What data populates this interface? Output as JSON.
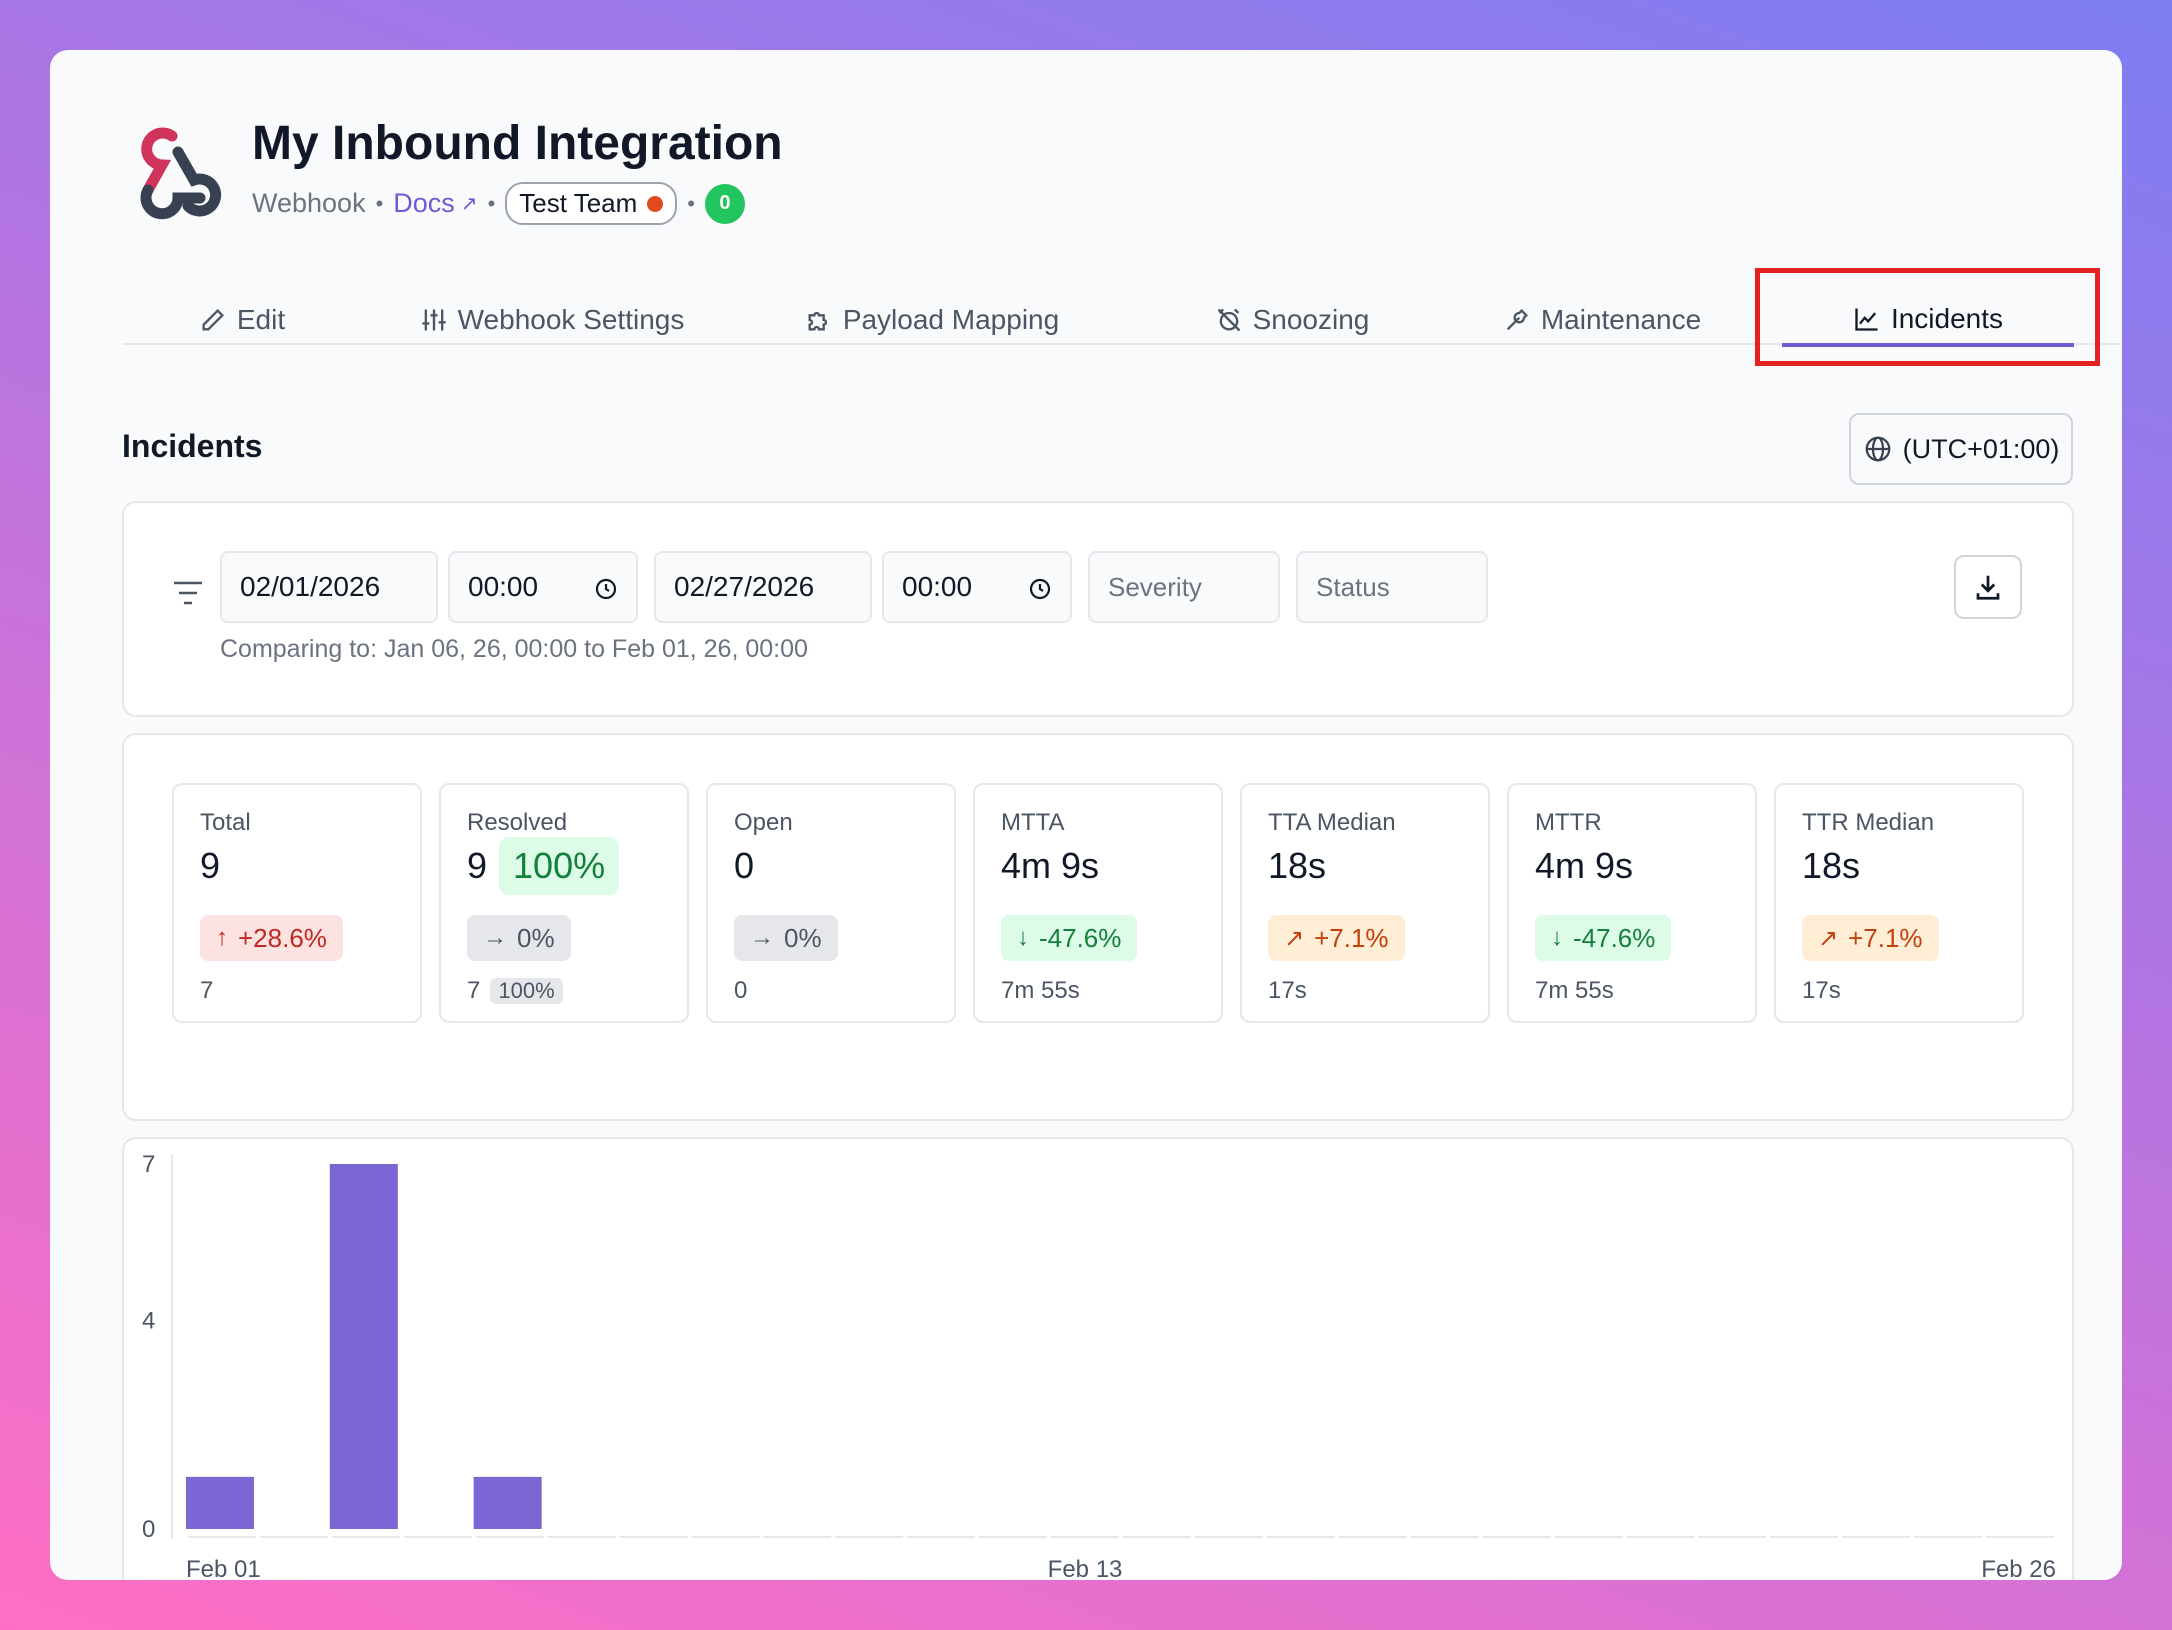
{
  "header": {
    "title": "My Inbound Integration",
    "type": "Webhook",
    "docs_label": "Docs",
    "team_label": "Test Team",
    "count": "0"
  },
  "tabs": [
    {
      "label": "Edit",
      "icon": "pencil-icon"
    },
    {
      "label": "Webhook Settings",
      "icon": "sliders-icon"
    },
    {
      "label": "Payload Mapping",
      "icon": "puzzle-icon"
    },
    {
      "label": "Snoozing",
      "icon": "alarm-off-icon"
    },
    {
      "label": "Maintenance",
      "icon": "wrench-icon"
    },
    {
      "label": "Incidents",
      "icon": "chart-line-icon",
      "active": true
    }
  ],
  "section": {
    "title": "Incidents",
    "timezone": "(UTC+01:00)"
  },
  "filters": {
    "start_date": "02/01/2026",
    "start_time": "00:00",
    "end_date": "02/27/2026",
    "end_time": "00:00",
    "severity_placeholder": "Severity",
    "status_placeholder": "Status",
    "comparing": "Comparing to: Jan 06, 26, 00:00 to Feb 01, 26, 00:00"
  },
  "stats": [
    {
      "label": "Total",
      "value": "9",
      "change": "+28.6%",
      "change_kind": "up-red",
      "previous": "7"
    },
    {
      "label": "Resolved",
      "value": "9",
      "percent": "100%",
      "change": "0%",
      "change_kind": "flat",
      "previous": "7",
      "previous_percent": "100%"
    },
    {
      "label": "Open",
      "value": "0",
      "change": "0%",
      "change_kind": "flat",
      "previous": "0"
    },
    {
      "label": "MTTA",
      "value": "4m 9s",
      "change": "-47.6%",
      "change_kind": "down-green",
      "previous": "7m 55s"
    },
    {
      "label": "TTA Median",
      "value": "18s",
      "change": "+7.1%",
      "change_kind": "up-orange",
      "previous": "17s"
    },
    {
      "label": "MTTR",
      "value": "4m 9s",
      "change": "-47.6%",
      "change_kind": "down-green",
      "previous": "7m 55s"
    },
    {
      "label": "TTR Median",
      "value": "18s",
      "change": "+7.1%",
      "change_kind": "up-orange",
      "previous": "17s"
    }
  ],
  "chart_data": {
    "type": "bar",
    "categories": [
      "Feb 01",
      "Feb 02",
      "Feb 03",
      "Feb 04",
      "Feb 05",
      "Feb 06",
      "Feb 07",
      "Feb 08",
      "Feb 09",
      "Feb 10",
      "Feb 11",
      "Feb 12",
      "Feb 13",
      "Feb 14",
      "Feb 15",
      "Feb 16",
      "Feb 17",
      "Feb 18",
      "Feb 19",
      "Feb 20",
      "Feb 21",
      "Feb 22",
      "Feb 23",
      "Feb 24",
      "Feb 25",
      "Feb 26"
    ],
    "values": [
      1,
      0,
      7,
      0,
      1,
      0,
      0,
      0,
      0,
      0,
      0,
      0,
      0,
      0,
      0,
      0,
      0,
      0,
      0,
      0,
      0,
      0,
      0,
      0,
      0,
      0
    ],
    "y_ticks": [
      "7",
      "4",
      "0"
    ],
    "x_tick_labels": [
      "Feb 01",
      "Feb 13",
      "Feb 26"
    ],
    "ylim": [
      0,
      7
    ],
    "bar_color": "#7c66d4"
  }
}
